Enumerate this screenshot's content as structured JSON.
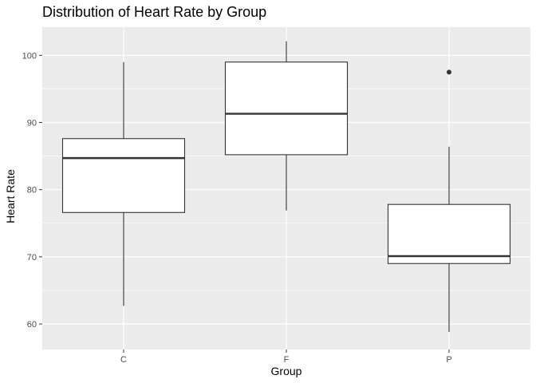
{
  "chart_data": {
    "type": "boxplot",
    "title": "Distribution of Heart Rate by Group",
    "xlabel": "Group",
    "ylabel": "Heart Rate",
    "categories": [
      "C",
      "F",
      "P"
    ],
    "boxes": [
      {
        "category": "C",
        "whisker_low": 62.7,
        "q1": 76.6,
        "median": 84.7,
        "q3": 87.6,
        "whisker_high": 99.0,
        "outliers": []
      },
      {
        "category": "F",
        "whisker_low": 76.9,
        "q1": 85.2,
        "median": 91.3,
        "q3": 99.0,
        "whisker_high": 102.1,
        "outliers": []
      },
      {
        "category": "P",
        "whisker_low": 58.8,
        "q1": 69.0,
        "median": 70.1,
        "q3": 77.8,
        "whisker_high": 86.4,
        "outliers": [
          97.5
        ]
      }
    ],
    "ylim": [
      56.2,
      104.2
    ],
    "yticks": [
      60,
      70,
      80,
      90,
      100
    ],
    "grid": true,
    "colors": {
      "panel_background": "#ebebeb",
      "gridline": "#ffffff",
      "box_fill": "#ffffff",
      "box_stroke": "#333333",
      "tick_mark": "#333333",
      "outlier": "#333333"
    }
  }
}
